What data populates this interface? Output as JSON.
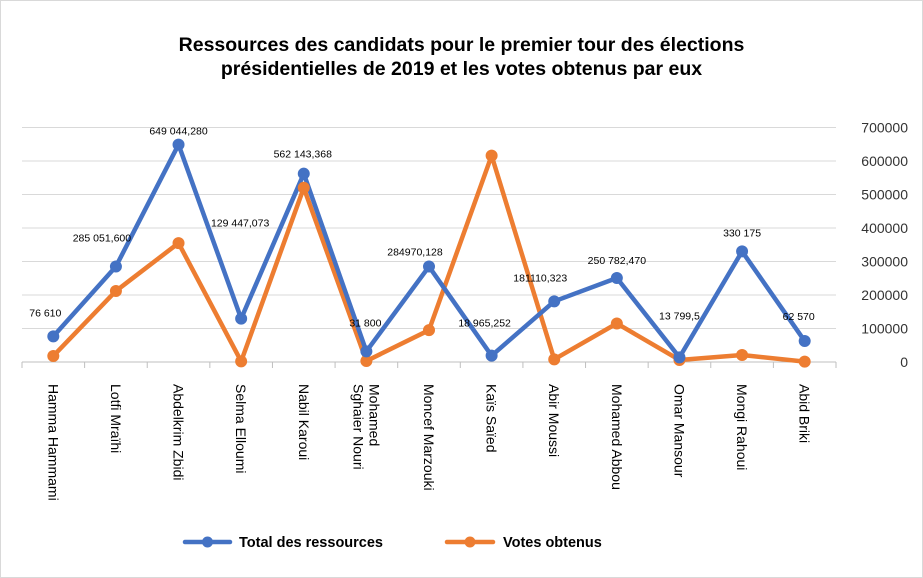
{
  "chart_data": {
    "type": "line",
    "title_line1": "Ressources des candidats pour le premier tour des élections",
    "title_line2": "présidentielles de 2019 et les votes obtenus par eux",
    "categories": [
      "Hamma Hammami",
      "Lotfi Mraïhi",
      "Abdelkrim Zbidi",
      "Selma Elloumi",
      "Nabil Karoui",
      "Mohamed\nSghaier Nouri",
      "Moncef Marzouki",
      "Kaïs Saïed",
      "Abir Moussi",
      "Mohamed Abbou",
      "Omar Mansour",
      "Mongi Rahoui",
      "Abid Briki"
    ],
    "y_ticks": [
      "700000",
      "600000",
      "500000",
      "400000",
      "300000",
      "200000",
      "100000",
      "0"
    ],
    "ylim": [
      0,
      700000
    ],
    "grid": true,
    "legend_position": "bottom",
    "series": [
      {
        "name": "Total des ressources",
        "color": "#4472C4",
        "values": [
          76610,
          285051.6,
          649044.28,
          129447.073,
          562143.368,
          31800,
          284970.128,
          18965.252,
          181110.323,
          250782.47,
          13799.5,
          330175,
          62570
        ],
        "labels": [
          "76 610",
          "285 051,600",
          "649 044,280",
          "129 447,073",
          "562 143,368",
          "31 800",
          "284970,128",
          "18 965,252",
          "181110,323",
          "250 782,470",
          "13 799,5",
          "330 175",
          "62 570"
        ]
      },
      {
        "name": "Votes obtenus",
        "color": "#ED7D31",
        "values": [
          18000,
          212000,
          355000,
          2000,
          520000,
          3000,
          95000,
          616000,
          8000,
          115000,
          6000,
          21000,
          1000
        ]
      }
    ]
  }
}
